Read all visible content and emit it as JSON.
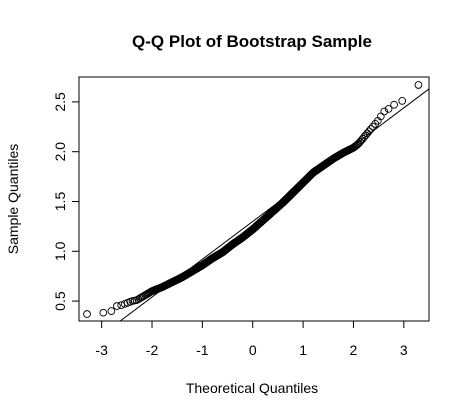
{
  "chart_data": {
    "type": "scatter",
    "title": "Q-Q Plot of Bootstrap Sample",
    "xlabel": "Theoretical Quantiles",
    "ylabel": "Sample Quantiles",
    "xlim": [
      -3.45,
      3.5
    ],
    "ylim": [
      0.3,
      2.75
    ],
    "x_ticks": [
      -3,
      -2,
      -1,
      0,
      1,
      2,
      3
    ],
    "y_ticks": [
      0.5,
      1.0,
      1.5,
      2.0,
      2.5
    ],
    "x_tick_labels": [
      "-3",
      "-2",
      "-1",
      "0",
      "1",
      "2",
      "3"
    ],
    "y_tick_labels": [
      "0.5",
      "1.0",
      "1.5",
      "2.0",
      "2.5"
    ],
    "grid": false,
    "reference_line": {
      "intercept": 1.3,
      "slope": 0.38
    },
    "n_points": 1000,
    "points_description_curve": [
      [
        -3.29,
        0.37
      ],
      [
        -3.0,
        0.38
      ],
      [
        -2.8,
        0.4
      ],
      [
        -2.7,
        0.45
      ],
      [
        -2.6,
        0.46
      ],
      [
        -2.5,
        0.48
      ],
      [
        -2.4,
        0.5
      ],
      [
        -2.3,
        0.51
      ],
      [
        -2.2,
        0.54
      ],
      [
        -2.1,
        0.57
      ],
      [
        -2.0,
        0.6
      ],
      [
        -1.8,
        0.64
      ],
      [
        -1.6,
        0.69
      ],
      [
        -1.4,
        0.74
      ],
      [
        -1.2,
        0.8
      ],
      [
        -1.0,
        0.86
      ],
      [
        -0.8,
        0.93
      ],
      [
        -0.6,
        0.99
      ],
      [
        -0.4,
        1.07
      ],
      [
        -0.2,
        1.14
      ],
      [
        0.0,
        1.22
      ],
      [
        0.2,
        1.31
      ],
      [
        0.4,
        1.4
      ],
      [
        0.6,
        1.49
      ],
      [
        0.8,
        1.59
      ],
      [
        1.0,
        1.69
      ],
      [
        1.2,
        1.79
      ],
      [
        1.4,
        1.86
      ],
      [
        1.6,
        1.93
      ],
      [
        1.8,
        1.99
      ],
      [
        2.0,
        2.04
      ],
      [
        2.1,
        2.08
      ],
      [
        2.2,
        2.14
      ],
      [
        2.3,
        2.2
      ],
      [
        2.4,
        2.26
      ],
      [
        2.5,
        2.32
      ],
      [
        2.6,
        2.4
      ],
      [
        2.7,
        2.43
      ],
      [
        2.8,
        2.47
      ],
      [
        2.9,
        2.49
      ],
      [
        3.0,
        2.52
      ],
      [
        3.29,
        2.67
      ]
    ]
  }
}
